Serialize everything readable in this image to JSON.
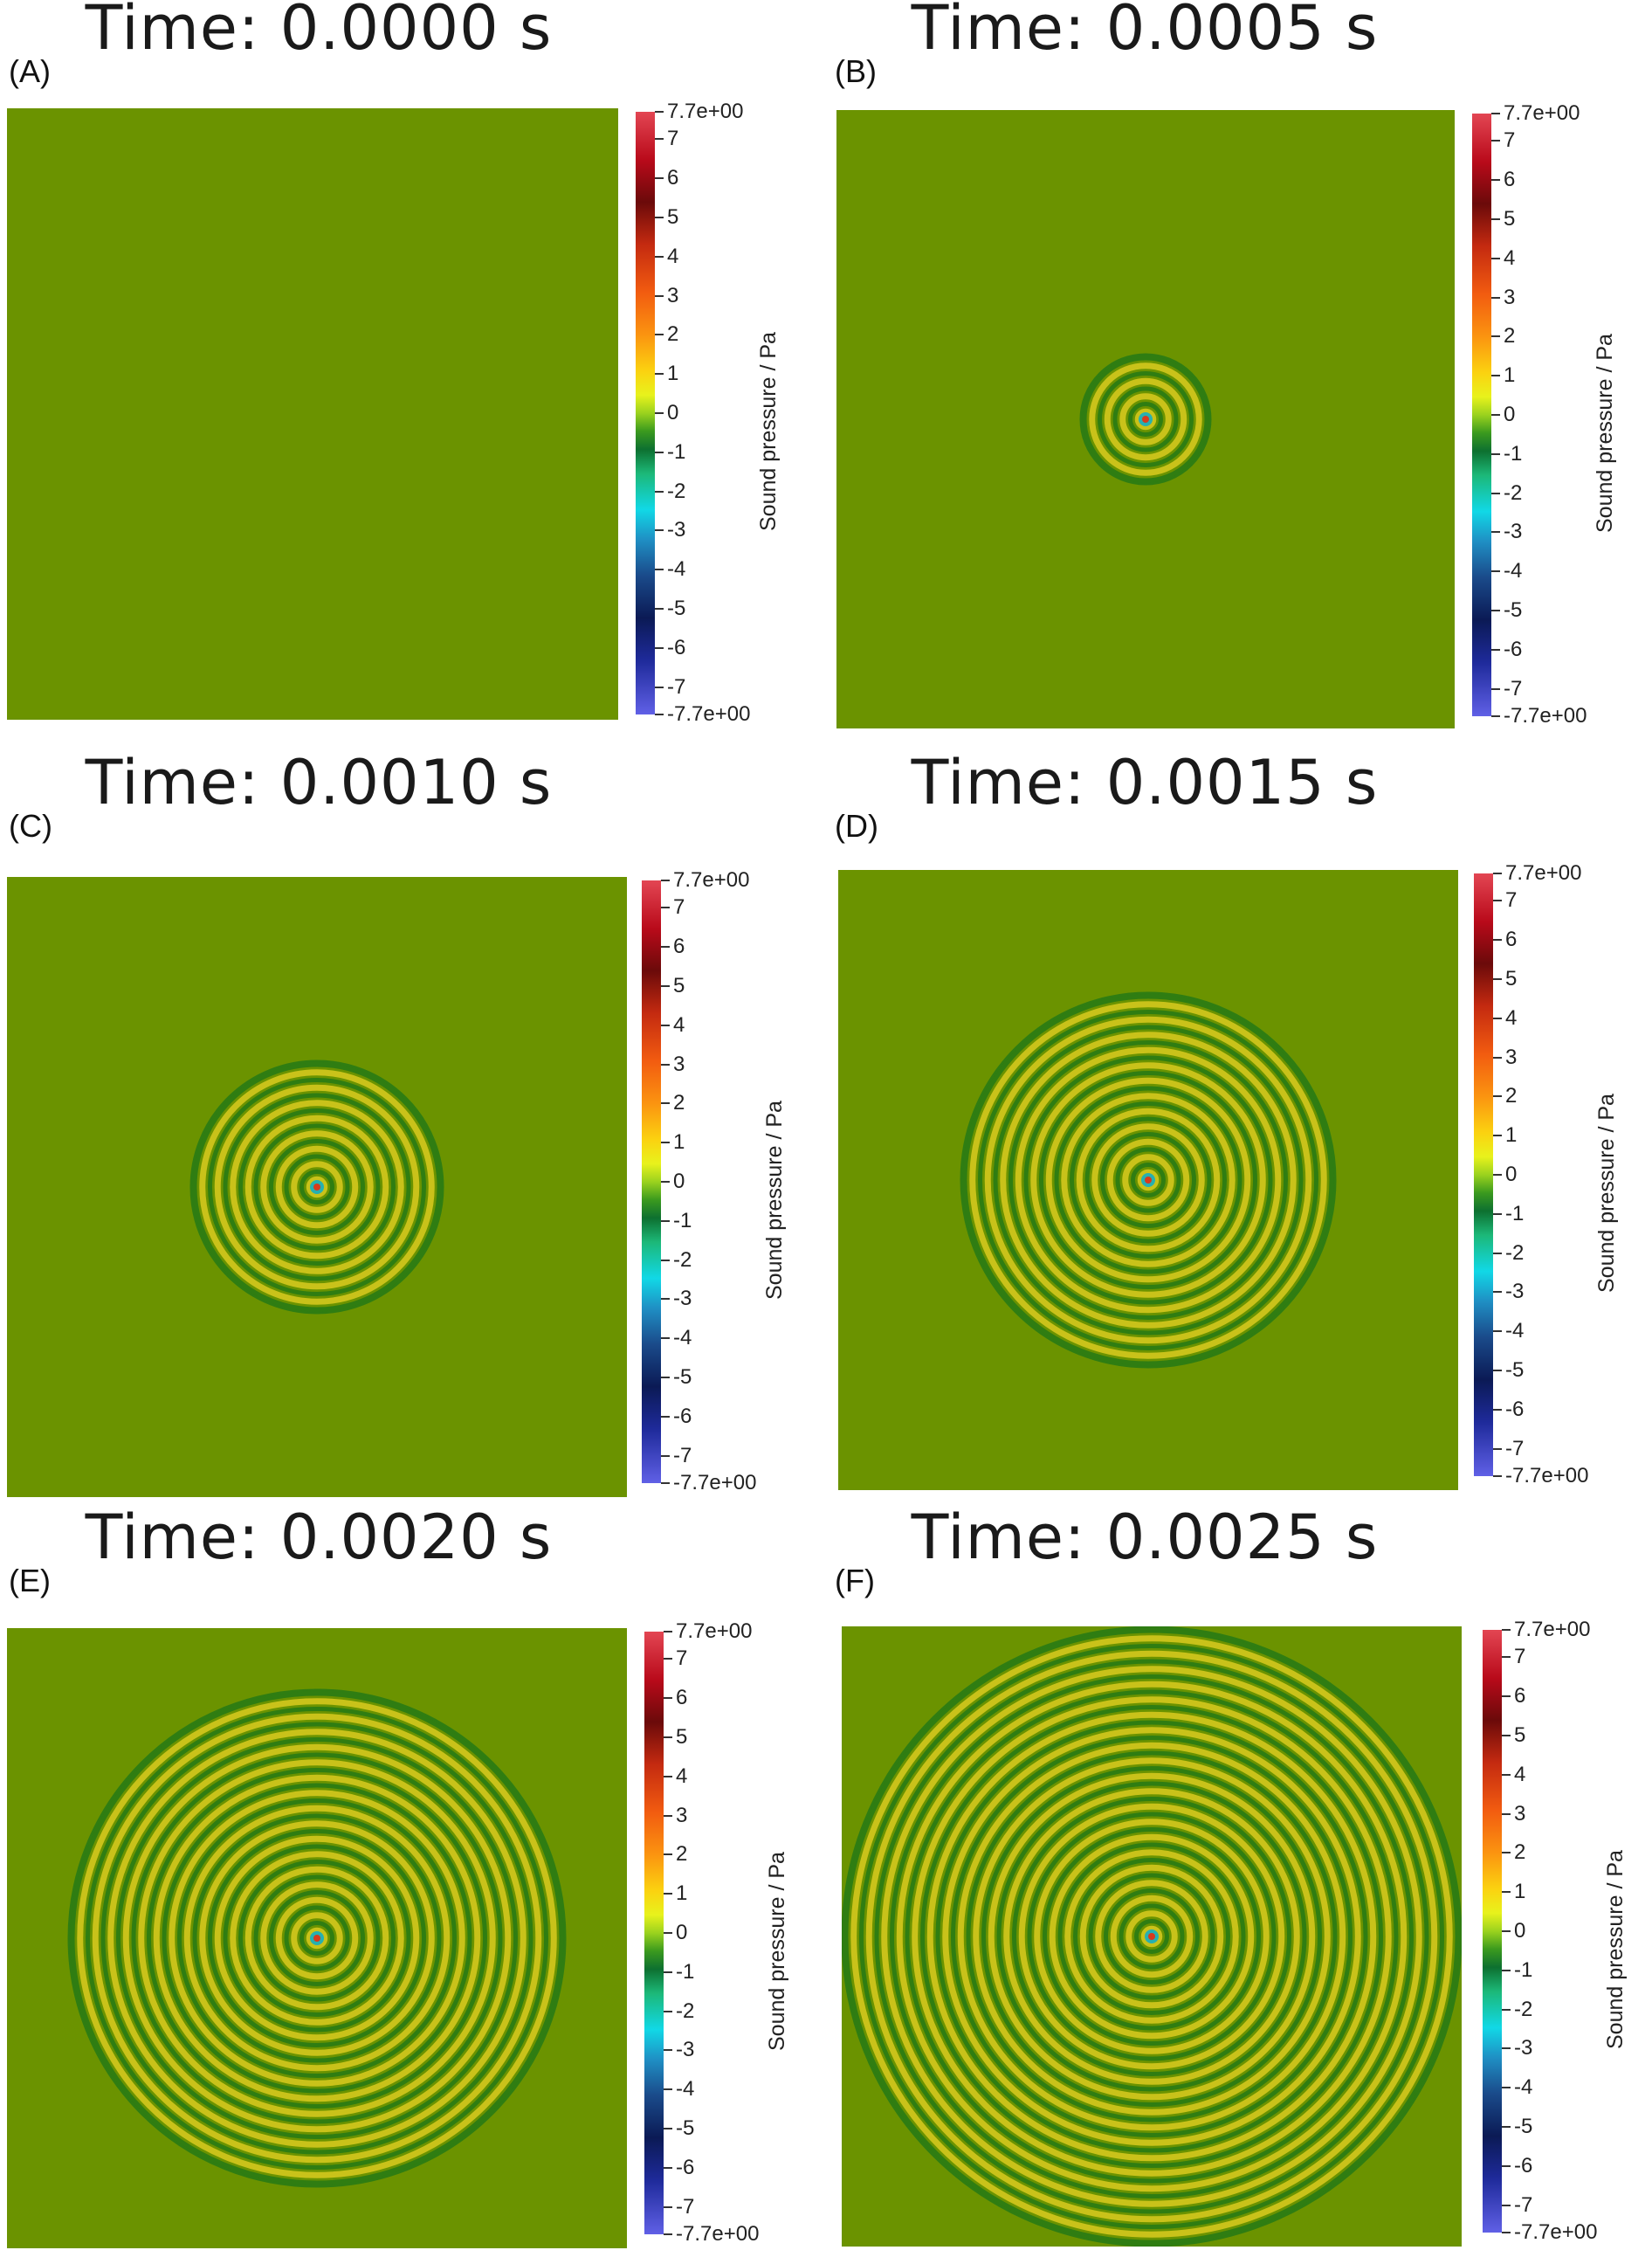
{
  "colorbar": {
    "title": "Sound pressure / Pa",
    "range": [
      -7.7,
      7.7
    ],
    "tick_labels": [
      "7.7e+00",
      "7",
      "6",
      "5",
      "4",
      "3",
      "2",
      "1",
      "0",
      "-1",
      "-2",
      "-3",
      "-4",
      "-5",
      "-6",
      "-7",
      "-7.7e+00"
    ],
    "tick_values": [
      7.7,
      7,
      6,
      5,
      4,
      3,
      2,
      1,
      0,
      -1,
      -2,
      -3,
      -4,
      -5,
      -6,
      -7,
      -7.7
    ]
  },
  "colors": {
    "background_field": "#6b9300",
    "ring_light": "#c9c21a",
    "ring_dark": "#2f7d12",
    "center_hot": "#d83a1c",
    "center_cyan": "#27b0b0"
  },
  "panels": [
    {
      "label": "(A)",
      "title": "Time: 0.0000 s",
      "ring_count": 0
    },
    {
      "label": "(B)",
      "title": "Time: 0.0005 s",
      "ring_count": 4
    },
    {
      "label": "(C)",
      "title": "Time: 0.0010 s",
      "ring_count": 8
    },
    {
      "label": "(D)",
      "title": "Time: 0.0015 s",
      "ring_count": 12
    },
    {
      "label": "(E)",
      "title": "Time: 0.0020 s",
      "ring_count": 16
    },
    {
      "label": "(F)",
      "title": "Time: 0.0025 s",
      "ring_count": 20
    }
  ]
}
